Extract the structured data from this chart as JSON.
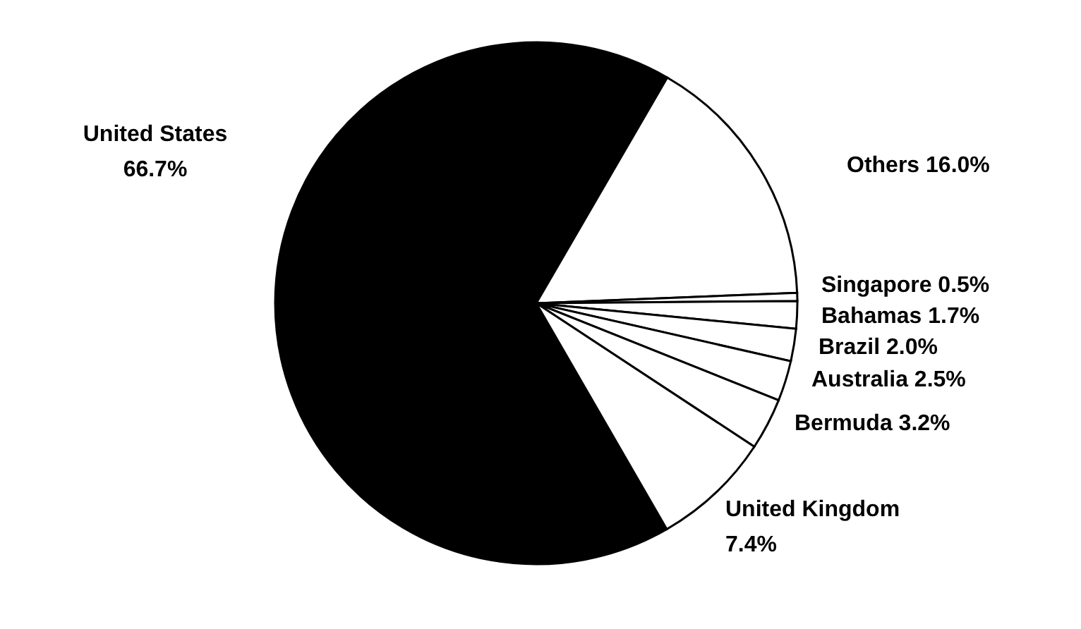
{
  "chart_data": {
    "type": "pie",
    "categories": [
      "United States",
      "Others",
      "Singapore",
      "Bahamas",
      "Brazil",
      "Australia",
      "Bermuda",
      "United Kingdom"
    ],
    "values": [
      66.7,
      16.0,
      0.5,
      1.7,
      2.0,
      2.5,
      3.2,
      7.4
    ],
    "value_labels": [
      "66.7%",
      "16.0%",
      "0.5%",
      "1.7%",
      "2.0%",
      "2.5%",
      "3.2%",
      "7.4%"
    ],
    "colors": [
      "#000000",
      "#ffffff",
      "#ffffff",
      "#ffffff",
      "#ffffff",
      "#ffffff",
      "#ffffff",
      "#ffffff"
    ]
  }
}
